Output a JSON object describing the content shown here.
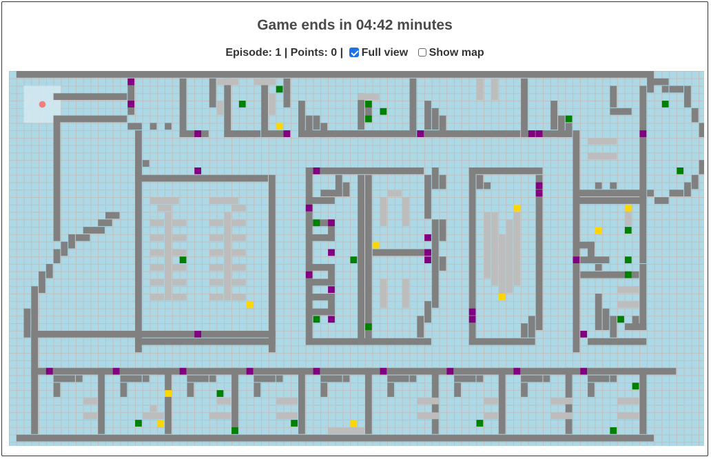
{
  "header": {
    "title": "Game ends in 04:42 minutes",
    "episode_label": "Episode: 1 | Points: 0 |",
    "full_view_label": "Full view",
    "full_view_checked": true,
    "show_map_label": "Show map",
    "show_map_checked": false
  },
  "game": {
    "episode": 1,
    "points": 0,
    "time_remaining": "04:42",
    "colors": {
      "floor": "#add8e6",
      "wall": "#808080",
      "obstacle": "#bdbdbd",
      "door": "#800080",
      "green_item": "#008000",
      "yellow_item": "#ffd700",
      "player": "#f08080",
      "visible_area": "#d6eaf3"
    }
  }
}
